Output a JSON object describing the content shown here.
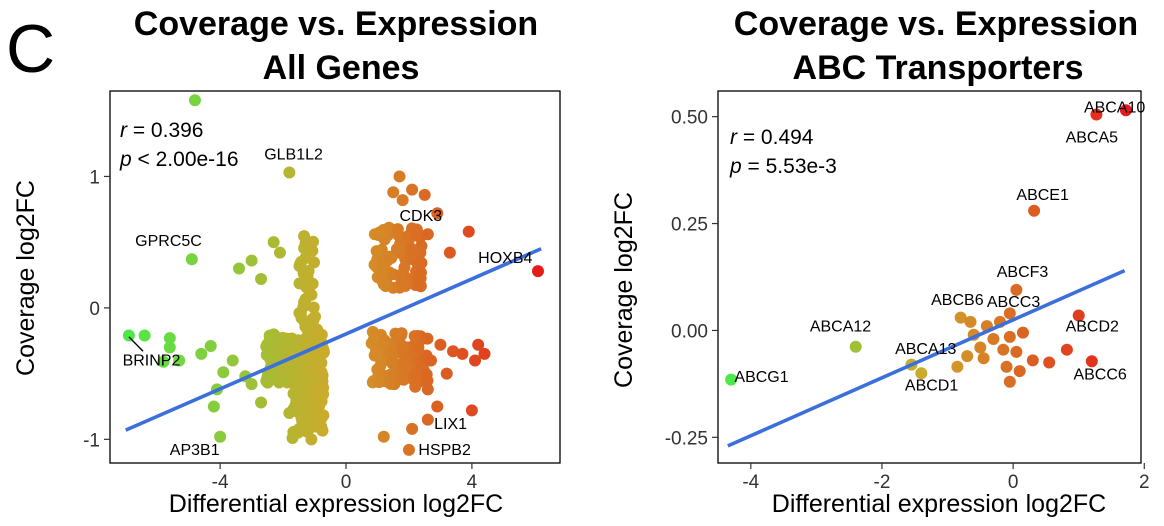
{
  "panel_letter": "C",
  "chart_data": [
    {
      "type": "scatter",
      "title": "Coverage vs. Expression",
      "subtitle": "All Genes",
      "xlabel": "Differential expression log2FC",
      "ylabel": "Coverage log2FC",
      "xlim": [
        -7.5,
        6.8
      ],
      "ylim": [
        -1.18,
        1.65
      ],
      "xticks": [
        -4,
        0,
        4
      ],
      "yticks": [
        -1,
        0,
        1
      ],
      "stats": {
        "r_symbol": "r",
        "r_text": " = 0.396",
        "p_symbol": "p",
        "p_text": " < 2.00e-16"
      },
      "fit_line": [
        [
          -7.0,
          -0.93
        ],
        [
          6.2,
          0.45
        ]
      ],
      "color_scale": {
        "low": "#4ee84a",
        "mid": "#d0a82a",
        "high": "#e61a1a",
        "xmin": -7,
        "xmax": 6.2
      },
      "points": [
        {
          "x": -4.8,
          "y": 1.58
        },
        {
          "x": -1.8,
          "y": 1.03
        },
        {
          "x": 1.7,
          "y": 1.0
        },
        {
          "x": 1.5,
          "y": 0.88
        },
        {
          "x": 1.8,
          "y": 0.82
        },
        {
          "x": 2.1,
          "y": 0.9
        },
        {
          "x": 2.5,
          "y": 0.86
        },
        {
          "x": 2.9,
          "y": 0.72
        },
        {
          "x": 3.9,
          "y": 0.58
        },
        {
          "x": 2.6,
          "y": 0.56
        },
        {
          "x": 3.3,
          "y": 0.42
        },
        {
          "x": 6.1,
          "y": 0.28
        },
        {
          "x": -4.9,
          "y": 0.37
        },
        {
          "x": -3.4,
          "y": 0.3
        },
        {
          "x": -3.0,
          "y": 0.36
        },
        {
          "x": -2.3,
          "y": 0.5
        },
        {
          "x": -2.1,
          "y": 0.42
        },
        {
          "x": -2.7,
          "y": 0.22
        },
        {
          "x": -6.9,
          "y": -0.21
        },
        {
          "x": -6.4,
          "y": -0.21
        },
        {
          "x": -5.6,
          "y": -0.23
        },
        {
          "x": -5.6,
          "y": -0.3
        },
        {
          "x": -5.8,
          "y": -0.41
        },
        {
          "x": -5.3,
          "y": -0.4
        },
        {
          "x": -4.6,
          "y": -0.35
        },
        {
          "x": -4.3,
          "y": -0.29
        },
        {
          "x": -3.6,
          "y": -0.4
        },
        {
          "x": -3.9,
          "y": -0.49
        },
        {
          "x": -4.1,
          "y": -0.62
        },
        {
          "x": -4.2,
          "y": -0.75
        },
        {
          "x": -3.2,
          "y": -0.52
        },
        {
          "x": -3.0,
          "y": -0.58
        },
        {
          "x": -2.7,
          "y": -0.72
        },
        {
          "x": -4.0,
          "y": -0.98
        },
        {
          "x": -1.8,
          "y": -0.8
        },
        {
          "x": -1.7,
          "y": -0.99
        },
        {
          "x": -1.1,
          "y": -1.0
        },
        {
          "x": -1.3,
          "y": -0.9
        },
        {
          "x": 1.0,
          "y": -0.35
        },
        {
          "x": 1.4,
          "y": -0.55
        },
        {
          "x": 1.9,
          "y": -0.45
        },
        {
          "x": 2.3,
          "y": -0.3
        },
        {
          "x": 2.7,
          "y": -0.4
        },
        {
          "x": 3.0,
          "y": -0.28
        },
        {
          "x": 2.2,
          "y": -0.6
        },
        {
          "x": 2.6,
          "y": -0.62
        },
        {
          "x": 3.2,
          "y": -0.5
        },
        {
          "x": 3.7,
          "y": -0.35
        },
        {
          "x": 3.4,
          "y": -0.33
        },
        {
          "x": 4.1,
          "y": -0.4
        },
        {
          "x": 4.4,
          "y": -0.35
        },
        {
          "x": 4.2,
          "y": -0.28
        },
        {
          "x": 2.9,
          "y": -0.75
        },
        {
          "x": 2.6,
          "y": -0.85
        },
        {
          "x": 1.2,
          "y": -0.98
        },
        {
          "x": 2.0,
          "y": -1.08
        },
        {
          "x": 2.1,
          "y": -0.92
        },
        {
          "x": 4.0,
          "y": -0.78
        }
      ],
      "point_clouds": [
        {
          "xmin": -2.6,
          "xmax": -0.7,
          "ymin": -0.58,
          "ymax": -0.2,
          "n": 170,
          "seed": 3
        },
        {
          "xmin": -1.7,
          "xmax": -0.7,
          "ymin": -0.95,
          "ymax": -0.4,
          "n": 110,
          "seed": 7
        },
        {
          "xmin": -1.5,
          "xmax": -0.9,
          "ymin": -0.2,
          "ymax": 0.55,
          "n": 35,
          "seed": 11
        },
        {
          "xmin": 0.9,
          "xmax": 2.4,
          "ymin": 0.15,
          "ymax": 0.62,
          "n": 85,
          "seed": 13
        },
        {
          "xmin": 0.8,
          "xmax": 2.6,
          "ymin": -0.58,
          "ymax": -0.18,
          "n": 100,
          "seed": 17
        }
      ],
      "annotations": [
        {
          "text": "GLB1L2",
          "x": -2.6,
          "y": 1.13
        },
        {
          "text": "GPRC5C",
          "x": -6.7,
          "y": 0.47
        },
        {
          "text": "CDK3",
          "x": 1.7,
          "y": 0.66
        },
        {
          "text": "HOXB4",
          "x": 4.2,
          "y": 0.34
        },
        {
          "text": "BRINP2",
          "x": -7.1,
          "y": -0.44
        },
        {
          "text": "AP3B1",
          "x": -5.6,
          "y": -1.12
        },
        {
          "text": "LIX1",
          "x": 2.8,
          "y": -0.92
        },
        {
          "text": "HSPB2",
          "x": 2.3,
          "y": -1.12
        }
      ],
      "leader": {
        "from": [
          -6.9,
          -0.22
        ],
        "to": [
          -6.45,
          -0.33
        ]
      }
    },
    {
      "type": "scatter",
      "title": "Coverage vs. Expression",
      "subtitle": "ABC Transporters",
      "xlabel": "Differential expression log2FC",
      "ylabel": "Coverage log2FC",
      "xlim": [
        -4.5,
        1.95
      ],
      "ylim": [
        -0.31,
        0.56
      ],
      "xticks": [
        -4,
        -2,
        0,
        2
      ],
      "yticks": [
        -0.25,
        0.0,
        0.25,
        0.5
      ],
      "ytick_labels": [
        "-0.25",
        "0.00",
        "0.25",
        "0.50"
      ],
      "stats": {
        "r_symbol": "r",
        "r_text": " = 0.494",
        "p_symbol": "p",
        "p_text": " = 5.53e-3"
      },
      "fit_line": [
        [
          -4.35,
          -0.27
        ],
        [
          1.7,
          0.14
        ]
      ],
      "color_scale": {
        "low": "#4ee84a",
        "mid": "#d0a82a",
        "high": "#e61a1a",
        "xmin": -4.3,
        "xmax": 1.75
      },
      "points": [
        {
          "x": 1.72,
          "y": 0.515,
          "name": "ABCA10"
        },
        {
          "x": 1.27,
          "y": 0.505,
          "name": "ABCA5"
        },
        {
          "x": 0.32,
          "y": 0.28,
          "name": "ABCE1"
        },
        {
          "x": 0.05,
          "y": 0.095,
          "name": "ABCF3"
        },
        {
          "x": -0.8,
          "y": 0.03,
          "name": "ABCB6"
        },
        {
          "x": -0.05,
          "y": 0.04,
          "name": "ABCC3"
        },
        {
          "x": -2.4,
          "y": -0.038,
          "name": "ABCA12"
        },
        {
          "x": 1.0,
          "y": 0.035,
          "name": "ABCD2"
        },
        {
          "x": -1.55,
          "y": -0.08,
          "name": "ABCA13"
        },
        {
          "x": -1.4,
          "y": -0.1,
          "name": "ABCD1"
        },
        {
          "x": 1.2,
          "y": -0.072,
          "name": "ABCC6"
        },
        {
          "x": -4.3,
          "y": -0.115,
          "name": "ABCG1"
        },
        {
          "x": -0.65,
          "y": 0.02
        },
        {
          "x": -0.4,
          "y": 0.01
        },
        {
          "x": -0.2,
          "y": 0.02
        },
        {
          "x": -0.6,
          "y": -0.01
        },
        {
          "x": -0.3,
          "y": -0.02
        },
        {
          "x": -0.05,
          "y": -0.015
        },
        {
          "x": 0.15,
          "y": -0.005
        },
        {
          "x": -0.5,
          "y": -0.04
        },
        {
          "x": -0.15,
          "y": -0.045
        },
        {
          "x": 0.05,
          "y": -0.05
        },
        {
          "x": -0.7,
          "y": -0.06
        },
        {
          "x": -0.45,
          "y": -0.065
        },
        {
          "x": 0.3,
          "y": -0.07
        },
        {
          "x": 0.55,
          "y": -0.075
        },
        {
          "x": -0.1,
          "y": -0.085
        },
        {
          "x": 0.1,
          "y": -0.095
        },
        {
          "x": -0.85,
          "y": -0.085
        },
        {
          "x": -0.05,
          "y": -0.12
        },
        {
          "x": 0.82,
          "y": -0.045
        }
      ],
      "annotations": [
        {
          "text": "ABCA10",
          "x": 1.08,
          "y": 0.51
        },
        {
          "text": "ABCA5",
          "x": 0.8,
          "y": 0.44
        },
        {
          "text": "ABCE1",
          "x": 0.05,
          "y": 0.305
        },
        {
          "text": "ABCF3",
          "x": -0.25,
          "y": 0.125
        },
        {
          "text": "ABCB6",
          "x": -1.25,
          "y": 0.06
        },
        {
          "text": "ABCC3",
          "x": -0.4,
          "y": 0.055
        },
        {
          "text": "ABCA12",
          "x": -3.1,
          "y": -0.003
        },
        {
          "text": "ABCD2",
          "x": 0.8,
          "y": -0.003
        },
        {
          "text": "ABCA13",
          "x": -1.8,
          "y": -0.055
        },
        {
          "text": "ABCD1",
          "x": -1.65,
          "y": -0.14
        },
        {
          "text": "ABCC6",
          "x": 0.92,
          "y": -0.115
        },
        {
          "text": "ABCG1",
          "x": -4.25,
          "y": -0.12
        }
      ]
    }
  ]
}
